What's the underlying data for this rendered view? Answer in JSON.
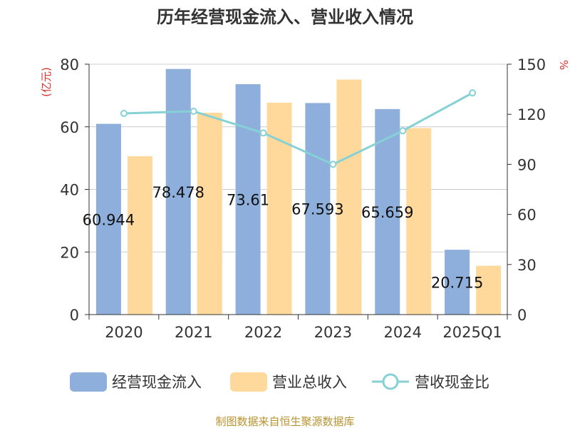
{
  "chart_data": {
    "type": "bar",
    "title": "历年经营现金流入、营业收入情况",
    "left_axis_unit": "(亿元)",
    "right_axis_unit": "%",
    "categories": [
      "2020",
      "2021",
      "2022",
      "2023",
      "2024",
      "2025Q1"
    ],
    "y_left": {
      "min": 0,
      "max": 80,
      "ticks": [
        "0",
        "20",
        "40",
        "60",
        "80"
      ]
    },
    "y_right": {
      "min": 0,
      "max": 150,
      "ticks": [
        "0",
        "30",
        "60",
        "90",
        "120",
        "150"
      ]
    },
    "series": [
      {
        "name": "经营现金流入",
        "type": "bar",
        "axis": "left",
        "color": "#8eaedb",
        "values": [
          60.944,
          78.478,
          73.61,
          67.593,
          65.659,
          20.715
        ],
        "data_labels": [
          "60.944",
          "78.478",
          "73.61",
          "67.593",
          "65.659",
          "20.715"
        ]
      },
      {
        "name": "营业总收入",
        "type": "bar",
        "axis": "left",
        "color": "#ffd99b",
        "values": [
          50.6,
          64.5,
          67.7,
          75.1,
          59.6,
          15.6
        ]
      },
      {
        "name": "营收现金比",
        "type": "line",
        "axis": "right",
        "color": "#86d1d6",
        "values": [
          120.5,
          121.8,
          108.8,
          90.0,
          110.1,
          132.8
        ]
      }
    ],
    "grid": true,
    "legend_position": "bottom"
  },
  "footer": {
    "source": "制图数据来自恒生聚源数据库"
  }
}
